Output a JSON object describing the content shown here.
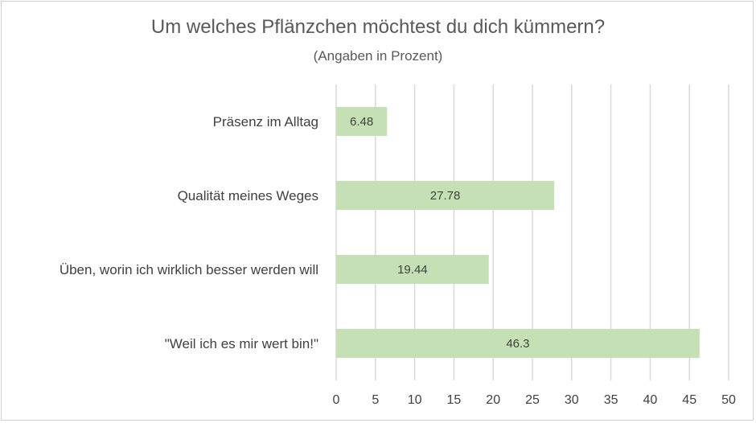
{
  "chart_data": {
    "type": "bar",
    "orientation": "horizontal",
    "title": "Um welches Pflänzchen möchtest du dich kümmern?",
    "subtitle": "(Angaben in Prozent)",
    "categories": [
      "Präsenz im Alltag",
      "Qualität meines Weges",
      "Üben, worin ich wirklich besser werden will",
      "\"Weil ich es mir wert bin!\""
    ],
    "values": [
      6.48,
      27.78,
      19.44,
      46.3
    ],
    "data_labels": [
      "6.48",
      "27.78",
      "19.44",
      "46.3"
    ],
    "xlim": [
      0,
      50
    ],
    "xticks": [
      0,
      5,
      10,
      15,
      20,
      25,
      30,
      35,
      40,
      45,
      50
    ],
    "grid": "vertical",
    "legend": "none",
    "colors": {
      "bar": "#c5e0b4",
      "grid": "#d9d9d9",
      "text": "#595959"
    }
  }
}
